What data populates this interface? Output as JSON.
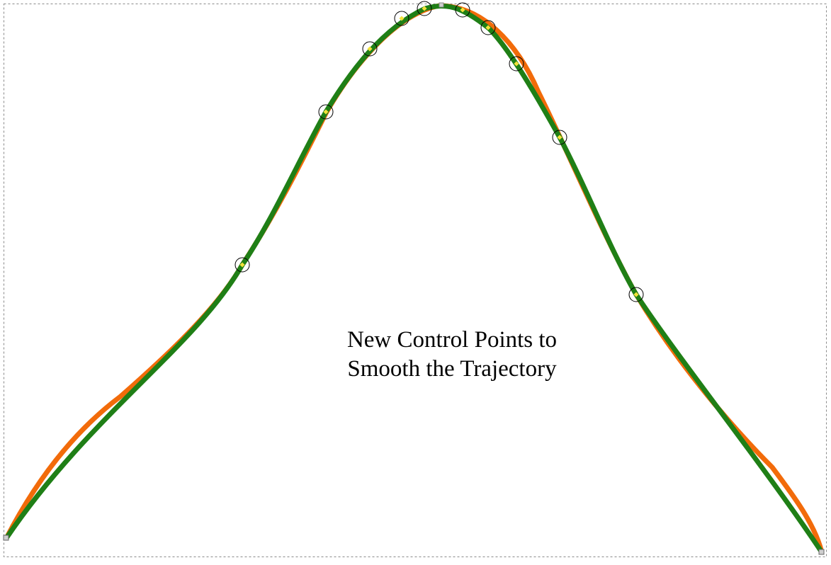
{
  "caption": {
    "line1": "New Control Points to",
    "line2": "Smooth the Trajectory"
  },
  "colors": {
    "original_curve": "#f26b0a",
    "smoothed_curve": "#1f7f16",
    "point_marker": "#f2e23a",
    "point_ring": "#000000",
    "frame": "#8a8a8a",
    "background": "#ffffff"
  },
  "control_point_count": 10
}
